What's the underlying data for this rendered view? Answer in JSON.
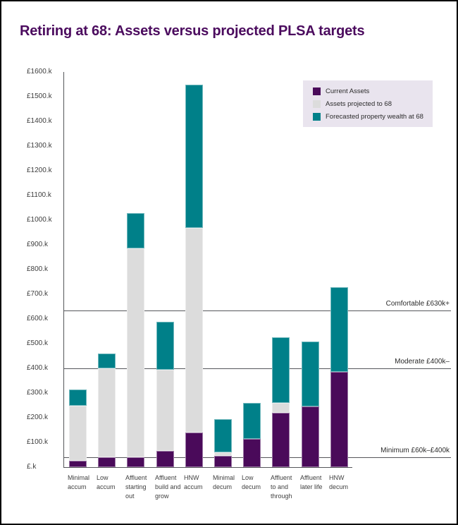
{
  "colors": {
    "title": "#4b0b5e",
    "line": "#55565a",
    "legend_bg": "#e9e4ee",
    "purple": "#4a0a5a",
    "gray": "#dcdcdc",
    "teal": "#008089"
  },
  "chart_data": {
    "type": "bar",
    "stacked": true,
    "title": "Retiring at 68: Assets versus projected PLSA targets",
    "xlabel": "",
    "ylabel": "",
    "grid": false,
    "legend_position": "top-right",
    "ylim": [
      0,
      1600
    ],
    "categories": [
      "Minimal accum",
      "Low accum",
      "Affluent starting out",
      "Affluent build and grow",
      "HNW accum",
      "Minimal decum",
      "Low decum",
      "Affluent to and through",
      "Affluent later life",
      "HNW decum"
    ],
    "category_lines": [
      [
        "Minimal",
        "accum"
      ],
      [
        "Low",
        "accum"
      ],
      [
        "Affluent",
        "starting",
        "out"
      ],
      [
        "Affluent",
        "build and",
        "grow"
      ],
      [
        "HNW",
        "accum"
      ],
      [
        "Minimal",
        "decum"
      ],
      [
        "Low",
        "decum"
      ],
      [
        "Affluent",
        "to and",
        "through"
      ],
      [
        "Affluent",
        "later life"
      ],
      [
        "HNW",
        "decum"
      ]
    ],
    "series": [
      {
        "name": "Current Assets",
        "color": "#4a0a5a",
        "values": [
          25,
          40,
          40,
          65,
          140,
          45,
          115,
          220,
          245,
          385
        ]
      },
      {
        "name": "Assets projected to 68",
        "color": "#dcdcdc",
        "values": [
          225,
          360,
          845,
          330,
          830,
          15,
          0,
          40,
          0,
          0
        ]
      },
      {
        "name": "Forecasted property wealth at 68",
        "color": "#008089",
        "values": [
          65,
          60,
          145,
          195,
          580,
          135,
          145,
          265,
          265,
          345
        ]
      }
    ],
    "y_axis": {
      "min": 0,
      "max": 1600,
      "step": 100,
      "unit": "£k",
      "tick_labels": [
        "£1600.k",
        "£1500.k",
        "£1400.k",
        "£1300.k",
        "£1200.k",
        "£1100.k",
        "£1000.k",
        "£900.k",
        "£800.k",
        "£700.k",
        "£600.k",
        "£500.k",
        "£400.k",
        "£300.k",
        "£200.k",
        "£100.k",
        "£.k"
      ]
    },
    "reference_lines": [
      {
        "label": "Comfortable £630k+",
        "y": 635
      },
      {
        "label": "Moderate £400k–",
        "y": 400
      },
      {
        "label": "Minimum £60k–£400k",
        "y": 41
      }
    ]
  }
}
